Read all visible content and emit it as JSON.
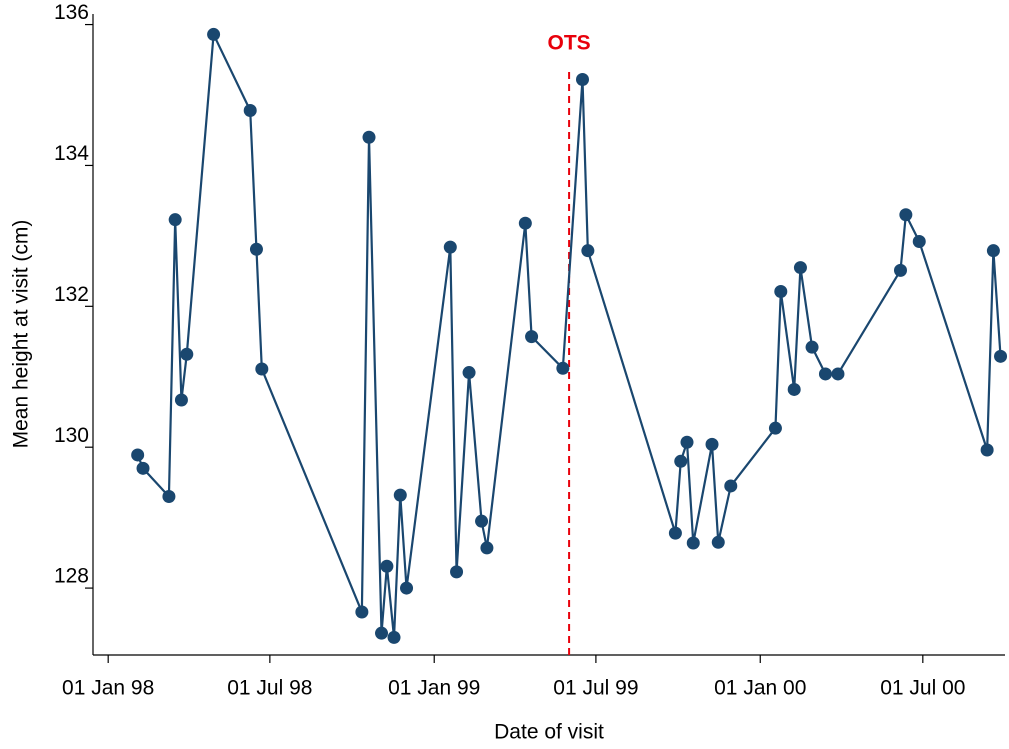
{
  "chart_data": {
    "type": "line",
    "x_label": "Date of visit",
    "y_label": "Mean height at visit (cm)",
    "x": [
      "1998-02-03",
      "1998-02-09",
      "1998-03-10",
      "1998-03-17",
      "1998-03-24",
      "1998-03-30",
      "1998-04-29",
      "1998-06-09",
      "1998-06-16",
      "1998-06-22",
      "1998-10-12",
      "1998-10-20",
      "1998-11-03",
      "1998-11-09",
      "1998-11-17",
      "1998-11-24",
      "1998-12-01",
      "1999-01-19",
      "1999-01-26",
      "1999-02-09",
      "1999-02-23",
      "1999-03-01",
      "1999-04-13",
      "1999-04-20",
      "1999-05-25",
      "1999-06-16",
      "1999-06-22",
      "1999-09-28",
      "1999-10-04",
      "1999-10-11",
      "1999-10-18",
      "1999-11-08",
      "1999-11-15",
      "1999-11-29",
      "2000-01-18",
      "2000-01-24",
      "2000-02-08",
      "2000-02-15",
      "2000-02-28",
      "2000-03-14",
      "2000-03-28",
      "2000-06-06",
      "2000-06-12",
      "2000-06-27",
      "2000-09-11",
      "2000-09-18",
      "2000-09-26"
    ],
    "values": [
      129.89,
      129.7,
      129.3,
      133.23,
      130.67,
      131.32,
      135.86,
      134.78,
      132.81,
      131.11,
      127.66,
      134.4,
      127.36,
      128.31,
      127.3,
      129.32,
      128.0,
      132.84,
      128.23,
      131.06,
      128.95,
      128.57,
      133.18,
      131.57,
      131.12,
      135.22,
      132.79,
      128.78,
      129.8,
      130.07,
      128.64,
      130.04,
      128.65,
      129.45,
      130.27,
      132.21,
      130.82,
      132.55,
      131.42,
      131.04,
      131.04,
      132.51,
      133.3,
      132.92,
      129.96,
      132.79,
      131.29
    ],
    "color": "#1a476f",
    "xlim": [
      "1997-12-15",
      "2000-10-01"
    ],
    "xticks": [
      {
        "value": "1998-01-01",
        "label": "01 Jan 98"
      },
      {
        "value": "1998-07-01",
        "label": "01 Jul 98"
      },
      {
        "value": "1999-01-01",
        "label": "01 Jan 99"
      },
      {
        "value": "1999-07-01",
        "label": "01 Jul 99"
      },
      {
        "value": "2000-01-01",
        "label": "01 Jan 00"
      },
      {
        "value": "2000-07-01",
        "label": "01 Jul 00"
      }
    ],
    "ylim": [
      127.05,
      136.15
    ],
    "yticks": [
      128,
      130,
      132,
      134,
      136
    ],
    "grid": false,
    "annotations": [
      {
        "x": "1999-06-01",
        "label": "OTS",
        "color": "#e8000b"
      }
    ]
  }
}
